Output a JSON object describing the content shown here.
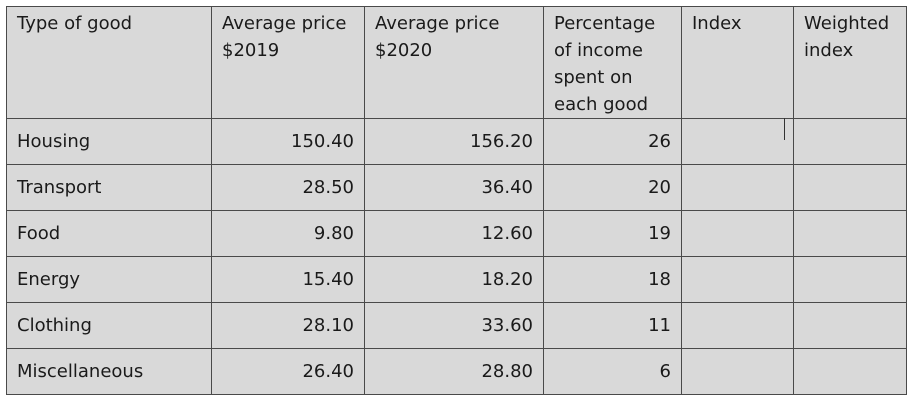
{
  "table": {
    "headers": [
      "Type of good",
      "Average price $2019",
      "Average price $2020",
      "Percentage of income spent on each good",
      "Index",
      "Weighted index"
    ],
    "rows": [
      {
        "good": "Housing",
        "price_2019": "150.40",
        "price_2020": "156.20",
        "percent": "26",
        "index": "",
        "weighted": ""
      },
      {
        "good": "Transport",
        "price_2019": "28.50",
        "price_2020": "36.40",
        "percent": "20",
        "index": "",
        "weighted": ""
      },
      {
        "good": "Food",
        "price_2019": "9.80",
        "price_2020": "12.60",
        "percent": "19",
        "index": "",
        "weighted": ""
      },
      {
        "good": "Energy",
        "price_2019": "15.40",
        "price_2020": "18.20",
        "percent": "18",
        "index": "",
        "weighted": ""
      },
      {
        "good": "Clothing",
        "price_2019": "28.10",
        "price_2020": "33.60",
        "percent": "11",
        "index": "",
        "weighted": ""
      },
      {
        "good": "Miscellaneous",
        "price_2019": "26.40",
        "price_2020": "28.80",
        "percent": "6",
        "index": "",
        "weighted": ""
      }
    ]
  }
}
